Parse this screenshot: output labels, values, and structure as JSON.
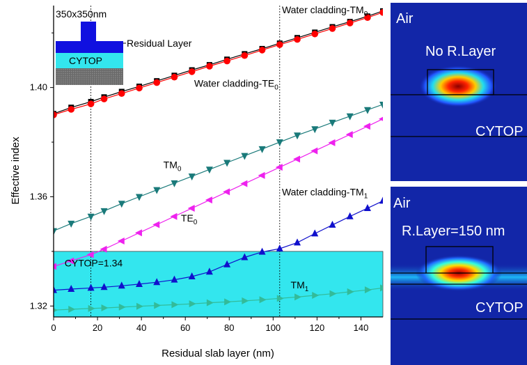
{
  "chart_data": {
    "type": "line",
    "title": "",
    "xlabel": "Residual slab layer (nm)",
    "ylabel": "Effective index",
    "xlim": [
      0,
      150
    ],
    "ylim": [
      1.316,
      1.43
    ],
    "x_ticks": [
      0,
      20,
      40,
      60,
      80,
      100,
      120,
      140
    ],
    "y_ticks": [
      1.32,
      1.36,
      1.4
    ],
    "grid": false,
    "x": [
      0,
      8,
      17,
      23,
      31,
      39,
      47,
      55,
      63,
      71,
      79,
      87,
      95,
      103,
      111,
      119,
      127,
      135,
      143,
      150
    ],
    "series": [
      {
        "name": "Water cladding-TM0",
        "color": "#000000",
        "marker": "square",
        "values": [
          1.3904,
          1.3927,
          1.3948,
          1.3965,
          1.3985,
          1.4004,
          1.4024,
          1.4044,
          1.4064,
          1.4083,
          1.4103,
          1.4123,
          1.4142,
          1.4162,
          1.4182,
          1.4202,
          1.4222,
          1.4241,
          1.4261,
          1.428
        ]
      },
      {
        "name": "Water cladding-TE0",
        "color": "#ff0000",
        "marker": "circle",
        "values": [
          1.39,
          1.392,
          1.394,
          1.3958,
          1.3978,
          1.3998,
          1.4018,
          1.4038,
          1.4058,
          1.4078,
          1.4097,
          1.4117,
          1.4137,
          1.4157,
          1.4176,
          1.4196,
          1.4216,
          1.4236,
          1.4256,
          1.4275
        ]
      },
      {
        "name": "TM0",
        "color": "#1a7a7a",
        "marker": "triangle-down",
        "values": [
          1.3475,
          1.3502,
          1.3528,
          1.3548,
          1.3575,
          1.36,
          1.3625,
          1.365,
          1.3675,
          1.37,
          1.3725,
          1.375,
          1.3775,
          1.38,
          1.3825,
          1.3848,
          1.3872,
          1.3895,
          1.3918,
          1.3938
        ]
      },
      {
        "name": "TE0",
        "color": "#ee22ee",
        "marker": "triangle-left",
        "values": [
          1.3345,
          1.3365,
          1.3388,
          1.3408,
          1.3438,
          1.3468,
          1.3498,
          1.3528,
          1.3558,
          1.3588,
          1.3618,
          1.3648,
          1.3678,
          1.3708,
          1.3738,
          1.3768,
          1.3798,
          1.3828,
          1.3858,
          1.3885
        ]
      },
      {
        "name": "Water cladding-TM1",
        "color": "#1010cc",
        "marker": "triangle-up",
        "values": [
          1.3258,
          1.3262,
          1.3266,
          1.3269,
          1.3274,
          1.328,
          1.3287,
          1.3296,
          1.3308,
          1.3325,
          1.3352,
          1.3378,
          1.3398,
          1.341,
          1.3432,
          1.3465,
          1.3497,
          1.3528,
          1.3558,
          1.3585
        ]
      },
      {
        "name": "TM1",
        "color": "#33bb99",
        "marker": "triangle-right",
        "values": [
          1.3185,
          1.3188,
          1.3191,
          1.3193,
          1.3196,
          1.3199,
          1.3202,
          1.3205,
          1.3208,
          1.3212,
          1.3215,
          1.3219,
          1.3223,
          1.3228,
          1.3233,
          1.3239,
          1.3245,
          1.3252,
          1.3259,
          1.3266
        ]
      }
    ],
    "cytop_band": {
      "from": 1.316,
      "to": 1.34,
      "color": "#33e6ee"
    },
    "vertical_lines": [
      17,
      103
    ],
    "annotations": [
      {
        "text": "Water cladding-TM",
        "sub": "0",
        "x": 104,
        "y": 1.4272
      },
      {
        "text": "Water cladding-TE",
        "sub": "0",
        "x": 64,
        "y": 1.4003
      },
      {
        "text": "TM",
        "sub": "0",
        "x": 50,
        "y": 1.3705
      },
      {
        "text": "TE",
        "sub": "0",
        "x": 58,
        "y": 1.351
      },
      {
        "text": "Water cladding-TM",
        "sub": "1",
        "x": 104,
        "y": 1.3605
      },
      {
        "text": "CYTOP=1.34",
        "sub": "",
        "x": 5,
        "y": 1.3345
      },
      {
        "text": "TM",
        "sub": "1",
        "x": 108,
        "y": 1.3265
      }
    ]
  },
  "inset": {
    "size_label": "350x350nm",
    "residual_label": "Residual Layer",
    "cytop_label": "CYTOP"
  },
  "panels": [
    {
      "top_label": "Air",
      "mode_label": "No R.Layer",
      "bottom_label": "CYTOP"
    },
    {
      "top_label": "Air",
      "mode_label": "R.Layer=150 nm",
      "bottom_label": "CYTOP"
    }
  ]
}
